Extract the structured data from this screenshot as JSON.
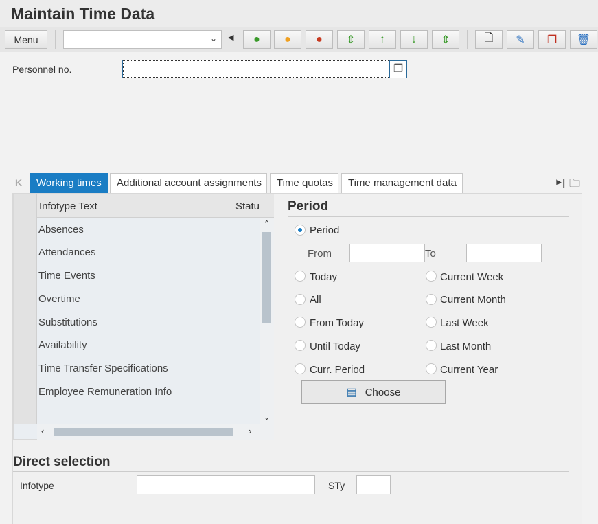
{
  "title": "Maintain Time Data",
  "toolbar": {
    "menu": "Menu",
    "command_value": "",
    "buttons": [
      "back-icon",
      "exit-icon",
      "cancel-icon",
      "first-record-icon",
      "previous-record-icon",
      "next-record-icon",
      "last-record-icon",
      "create-icon",
      "change-icon",
      "copy-icon",
      "delete-icon"
    ]
  },
  "personnel": {
    "label": "Personnel no.",
    "value": ""
  },
  "tabs": [
    "Working times",
    "Additional account assignments",
    "Time quotas",
    "Time management data"
  ],
  "table": {
    "headers": [
      "Infotype Text",
      "Statu"
    ],
    "rows": [
      "Absences",
      "Attendances",
      "Time Events",
      "Overtime",
      "Substitutions",
      "Availability",
      "Time Transfer Specifications",
      "Employee Remuneration Info"
    ]
  },
  "period": {
    "title": "Period",
    "period_option": "Period",
    "from_label": "From",
    "to_label": "To",
    "from_value": "",
    "to_value": "",
    "selected": "Period",
    "left": [
      "Today",
      "All",
      "From Today",
      "Until Today",
      "Curr. Period"
    ],
    "right": [
      "Current Week",
      "Current Month",
      "Last Week",
      "Last Month",
      "Current Year"
    ],
    "choose": "Choose"
  },
  "direct": {
    "title": "Direct selection",
    "infotype_label": "Infotype",
    "infotype_value": "",
    "sty_label": "STy",
    "sty_value": ""
  },
  "colors": {
    "accent": "#1a7dc4"
  }
}
